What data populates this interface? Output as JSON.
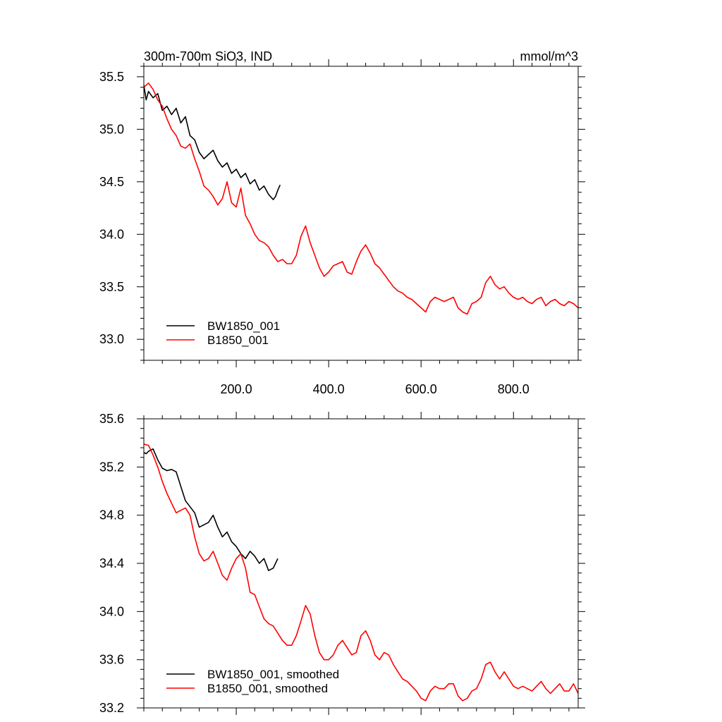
{
  "chart_data": [
    {
      "type": "line",
      "panel": "top",
      "title": "300m-700m SiO3, IND",
      "units": "mmol/m^3",
      "xlabel": "",
      "ylabel": "",
      "xlim": [
        0,
        940
      ],
      "ylim": [
        32.8,
        35.6
      ],
      "xticks": [
        200,
        400,
        600,
        800
      ],
      "xtick_labels": [
        "200.0",
        "400.0",
        "600.0",
        "800.0"
      ],
      "yticks": [
        33.0,
        33.5,
        34.0,
        34.5,
        35.0,
        35.5
      ],
      "ytick_labels": [
        "33.0",
        "33.5",
        "34.0",
        "34.5",
        "35.0",
        "35.5"
      ],
      "grid": false,
      "legend_position": "bottom-left",
      "series": [
        {
          "name": "BW1850_001",
          "color": "#000000",
          "x": [
            0,
            5,
            10,
            20,
            30,
            40,
            50,
            60,
            70,
            80,
            90,
            100,
            110,
            120,
            130,
            140,
            150,
            160,
            170,
            180,
            190,
            200,
            210,
            220,
            230,
            240,
            250,
            260,
            270,
            280,
            285,
            290,
            295
          ],
          "y": [
            35.42,
            35.28,
            35.36,
            35.3,
            35.34,
            35.18,
            35.22,
            35.14,
            35.2,
            35.06,
            35.12,
            34.94,
            34.9,
            34.78,
            34.72,
            34.76,
            34.8,
            34.7,
            34.64,
            34.68,
            34.58,
            34.62,
            34.54,
            34.58,
            34.48,
            34.52,
            34.42,
            34.46,
            34.38,
            34.33,
            34.36,
            34.42,
            34.47
          ]
        },
        {
          "name": "B1850_001",
          "color": "#ff0000",
          "x": [
            0,
            10,
            20,
            30,
            40,
            50,
            60,
            70,
            80,
            90,
            100,
            110,
            120,
            130,
            140,
            150,
            160,
            170,
            180,
            190,
            200,
            210,
            220,
            230,
            240,
            250,
            260,
            270,
            280,
            290,
            300,
            310,
            320,
            330,
            340,
            350,
            360,
            370,
            380,
            390,
            400,
            410,
            420,
            430,
            440,
            450,
            460,
            470,
            480,
            490,
            500,
            510,
            520,
            530,
            540,
            550,
            560,
            570,
            580,
            590,
            600,
            610,
            620,
            630,
            640,
            650,
            660,
            670,
            680,
            690,
            700,
            710,
            720,
            730,
            740,
            750,
            760,
            770,
            780,
            790,
            800,
            810,
            820,
            830,
            840,
            850,
            860,
            870,
            880,
            890,
            900,
            910,
            920,
            930,
            940
          ],
          "y": [
            35.4,
            35.44,
            35.38,
            35.28,
            35.22,
            35.1,
            35.0,
            34.94,
            34.84,
            34.82,
            34.86,
            34.72,
            34.6,
            34.46,
            34.42,
            34.36,
            34.28,
            34.34,
            34.5,
            34.3,
            34.26,
            34.44,
            34.18,
            34.1,
            34.0,
            33.94,
            33.92,
            33.88,
            33.8,
            33.74,
            33.76,
            33.72,
            33.72,
            33.8,
            33.98,
            34.08,
            33.92,
            33.8,
            33.68,
            33.6,
            33.64,
            33.7,
            33.72,
            33.74,
            33.64,
            33.62,
            33.74,
            33.84,
            33.9,
            33.82,
            33.72,
            33.68,
            33.62,
            33.56,
            33.5,
            33.46,
            33.44,
            33.4,
            33.38,
            33.34,
            33.3,
            33.26,
            33.36,
            33.4,
            33.38,
            33.36,
            33.38,
            33.4,
            33.3,
            33.26,
            33.24,
            33.34,
            33.36,
            33.4,
            33.54,
            33.6,
            33.52,
            33.48,
            33.5,
            33.44,
            33.4,
            33.38,
            33.4,
            33.36,
            33.34,
            33.38,
            33.4,
            33.32,
            33.36,
            33.38,
            33.34,
            33.32,
            33.36,
            33.34,
            33.3
          ]
        }
      ]
    },
    {
      "type": "line",
      "panel": "bottom",
      "title": "",
      "xlabel": "",
      "ylabel": "",
      "xlim": [
        0,
        940
      ],
      "ylim": [
        33.2,
        35.6
      ],
      "xticks": [
        200,
        400,
        600,
        800
      ],
      "xtick_labels": [],
      "yticks": [
        33.2,
        33.6,
        34.0,
        34.4,
        34.8,
        35.2,
        35.6
      ],
      "ytick_labels": [
        "33.2",
        "33.6",
        "34.0",
        "34.4",
        "34.8",
        "35.2",
        "35.6"
      ],
      "grid": false,
      "legend_position": "bottom-left",
      "series": [
        {
          "name": "BW1850_001, smoothed",
          "color": "#000000",
          "x": [
            0,
            5,
            10,
            20,
            30,
            40,
            50,
            60,
            70,
            80,
            90,
            100,
            110,
            120,
            130,
            140,
            150,
            160,
            170,
            180,
            190,
            200,
            210,
            220,
            230,
            240,
            250,
            260,
            270,
            280,
            290
          ],
          "y": [
            35.32,
            35.31,
            35.33,
            35.35,
            35.26,
            35.19,
            35.17,
            35.18,
            35.16,
            35.04,
            34.92,
            34.87,
            34.82,
            34.7,
            34.72,
            34.74,
            34.8,
            34.7,
            34.62,
            34.66,
            34.58,
            34.54,
            34.48,
            34.44,
            34.5,
            34.46,
            34.4,
            34.44,
            34.34,
            34.36,
            34.44
          ]
        },
        {
          "name": "B1850_001, smoothed",
          "color": "#ff0000",
          "x": [
            0,
            10,
            20,
            30,
            40,
            50,
            60,
            70,
            80,
            90,
            100,
            110,
            120,
            130,
            140,
            150,
            160,
            170,
            180,
            190,
            200,
            210,
            220,
            230,
            240,
            250,
            260,
            270,
            280,
            290,
            300,
            310,
            320,
            330,
            340,
            350,
            360,
            370,
            380,
            390,
            400,
            410,
            420,
            430,
            440,
            450,
            460,
            470,
            480,
            490,
            500,
            510,
            520,
            530,
            540,
            550,
            560,
            570,
            580,
            590,
            600,
            610,
            620,
            630,
            640,
            650,
            660,
            670,
            680,
            690,
            700,
            710,
            720,
            730,
            740,
            750,
            760,
            770,
            780,
            790,
            800,
            810,
            820,
            830,
            840,
            850,
            860,
            870,
            880,
            890,
            900,
            910,
            920,
            930,
            940
          ],
          "y": [
            35.39,
            35.38,
            35.3,
            35.2,
            35.08,
            34.98,
            34.9,
            34.82,
            34.84,
            34.86,
            34.8,
            34.62,
            34.48,
            34.42,
            34.44,
            34.5,
            34.4,
            34.3,
            34.26,
            34.36,
            34.44,
            34.48,
            34.36,
            34.16,
            34.14,
            34.04,
            33.94,
            33.9,
            33.88,
            33.82,
            33.76,
            33.72,
            33.72,
            33.8,
            33.92,
            34.05,
            33.98,
            33.8,
            33.66,
            33.6,
            33.6,
            33.64,
            33.72,
            33.76,
            33.7,
            33.64,
            33.66,
            33.8,
            33.84,
            33.76,
            33.64,
            33.6,
            33.66,
            33.64,
            33.56,
            33.5,
            33.44,
            33.42,
            33.38,
            33.34,
            33.28,
            33.26,
            33.34,
            33.38,
            33.36,
            33.36,
            33.4,
            33.4,
            33.3,
            33.26,
            33.28,
            33.34,
            33.36,
            33.44,
            33.56,
            33.58,
            33.5,
            33.44,
            33.5,
            33.44,
            33.38,
            33.36,
            33.38,
            33.36,
            33.34,
            33.38,
            33.42,
            33.36,
            33.32,
            33.36,
            33.4,
            33.34,
            33.34,
            33.4,
            33.32
          ]
        }
      ]
    }
  ]
}
